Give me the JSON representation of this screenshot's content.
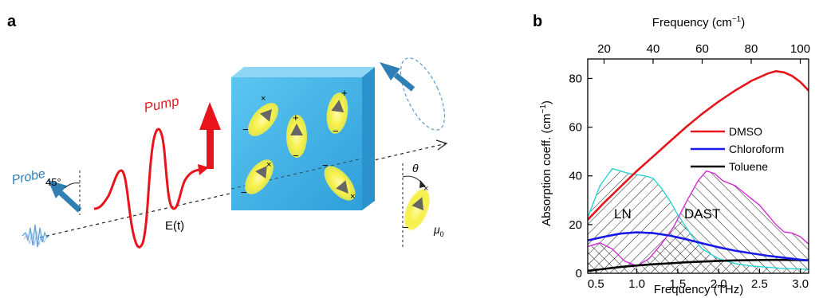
{
  "panel_a": {
    "label": "a",
    "probe": "Probe",
    "pump": "Pump",
    "angle": "45°",
    "field": "E(t)",
    "theta": "θ",
    "mu": "μ",
    "mu_sub": "0",
    "colors": {
      "probe": "#2f7fb5",
      "pump": "#e8141b",
      "crystal": "#4bb8ea",
      "glow": "#f4ef3c"
    }
  },
  "panel_b": {
    "label": "b",
    "top_axis": {
      "label": "Frequency (cm",
      "sup": "−1",
      "close": ")",
      "ticks": [
        "20",
        "40",
        "60",
        "80",
        "100"
      ]
    },
    "x_axis": {
      "label": "Frequency (THz)",
      "ticks": [
        "0.5",
        "1.0",
        "1.5",
        "2.0",
        "2.5",
        "3.0"
      ]
    },
    "y_axis": {
      "label": "Absorption coeff. (cm",
      "sup": "−1",
      "close": ")",
      "ticks": [
        "0",
        "20",
        "40",
        "60",
        "80"
      ]
    },
    "region_labels": {
      "ln": "LN",
      "dast": "DAST"
    }
  },
  "chart_data": {
    "type": "line",
    "xlabel": "Frequency (THz)",
    "ylabel": "Absorption coeff. (cm−1)",
    "x2label": "Frequency (cm−1)",
    "xlim": [
      0.4,
      3.1
    ],
    "ylim": [
      0,
      88
    ],
    "legend": "right",
    "series": [
      {
        "name": "DMSO",
        "color": "#e8141b",
        "x": [
          0.4,
          0.6,
          0.8,
          1.0,
          1.2,
          1.4,
          1.6,
          1.8,
          2.0,
          2.2,
          2.4,
          2.6,
          2.7,
          2.8,
          2.9,
          3.0,
          3.1
        ],
        "y": [
          22,
          29,
          35.5,
          42,
          48,
          54,
          60,
          65.5,
          70.5,
          75,
          79,
          82,
          83,
          82.5,
          81,
          78.5,
          75
        ]
      },
      {
        "name": "Chloroform",
        "color": "#1a1ae6",
        "x": [
          0.4,
          0.6,
          0.8,
          1.0,
          1.2,
          1.4,
          1.6,
          1.8,
          2.0,
          2.2,
          2.4,
          2.6,
          2.8,
          3.0,
          3.1
        ],
        "y": [
          13.5,
          15,
          16.3,
          16.8,
          16.5,
          15.5,
          14,
          12.3,
          10.7,
          9.3,
          8.2,
          7.2,
          6.4,
          5.6,
          5.3
        ]
      },
      {
        "name": "Toluene",
        "color": "#000000",
        "x": [
          0.4,
          0.6,
          0.8,
          1.0,
          1.2,
          1.4,
          1.6,
          1.8,
          2.0,
          2.2,
          2.4,
          2.6,
          2.8,
          3.0,
          3.1
        ],
        "y": [
          1,
          1.8,
          2.6,
          3.2,
          3.7,
          4.1,
          4.5,
          4.8,
          5.1,
          5.3,
          5.4,
          5.5,
          5.5,
          5.4,
          5.3
        ]
      },
      {
        "name": "LN",
        "color": "#28d5d5",
        "x": [
          0.4,
          0.55,
          0.7,
          0.8,
          0.9,
          1.0,
          1.1,
          1.2,
          1.3,
          1.4,
          1.5,
          1.6,
          1.7,
          1.8,
          2.0,
          2.2,
          2.4,
          2.6,
          2.8,
          3.0,
          3.1
        ],
        "y": [
          23,
          36,
          43,
          42,
          41,
          40.5,
          40,
          39,
          35,
          30,
          24,
          19,
          14,
          10,
          6,
          4,
          3,
          2.5,
          2,
          1.8,
          1.5
        ]
      },
      {
        "name": "DAST",
        "color": "#d42ad4",
        "x": [
          0.4,
          0.55,
          0.7,
          0.85,
          1.0,
          1.15,
          1.3,
          1.45,
          1.6,
          1.75,
          1.85,
          1.95,
          2.05,
          2.2,
          2.35,
          2.5,
          2.6,
          2.7,
          2.8,
          2.9,
          3.0,
          3.1
        ],
        "y": [
          11,
          12.5,
          10,
          5,
          3,
          6,
          12,
          19,
          29,
          38,
          42,
          41,
          38,
          36,
          32,
          28,
          24,
          20,
          17,
          16.5,
          15,
          12
        ]
      }
    ]
  }
}
